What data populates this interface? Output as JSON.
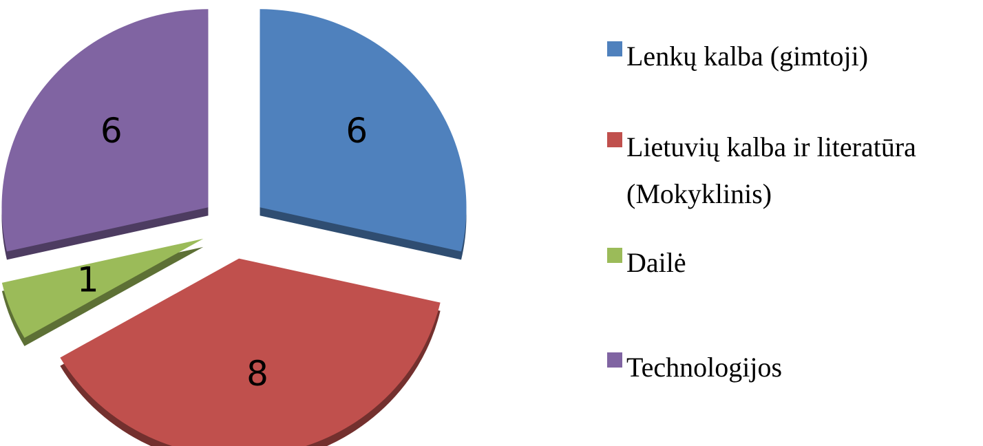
{
  "chart_data": {
    "type": "pie",
    "categories": [
      "Lenkų kalba (gimtoji)",
      "Lietuvių kalba ir literatūra (Mokyklinis)",
      "Dailė",
      "Technologijos"
    ],
    "values": [
      6,
      8,
      1,
      6
    ],
    "colors": [
      "#4f81bd",
      "#c0504d",
      "#9bbb59",
      "#8064a2"
    ],
    "legend": "right"
  }
}
